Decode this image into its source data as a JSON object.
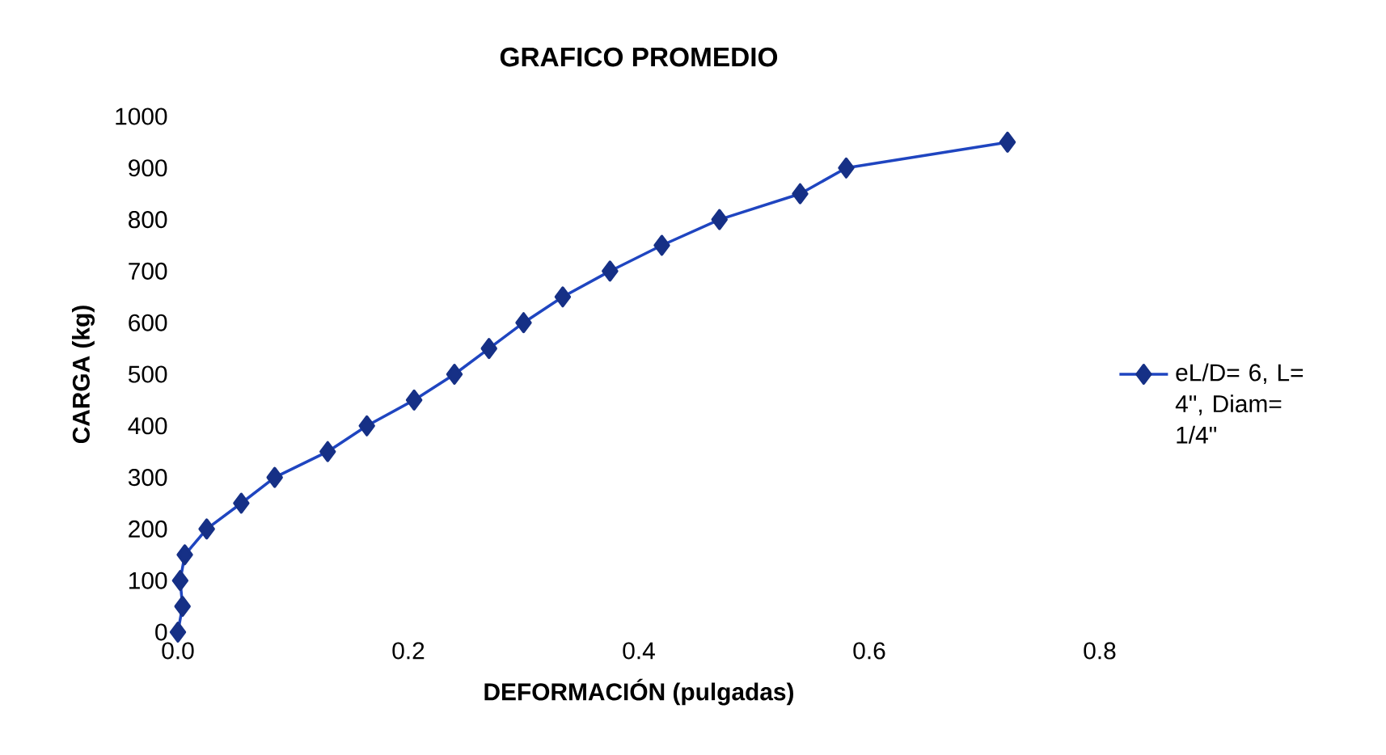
{
  "chart_data": {
    "type": "line",
    "title": "GRAFICO PROMEDIO",
    "xlabel": "DEFORMACIÓN (pulgadas)",
    "ylabel": "CARGA (kg)",
    "xlim": [
      0,
      0.8
    ],
    "xticks": [
      {
        "value": 0,
        "label": "0.0"
      },
      {
        "value": 0.2,
        "label": "0.2"
      },
      {
        "value": 0.4,
        "label": "0.4"
      },
      {
        "value": 0.6,
        "label": "0.6"
      },
      {
        "value": 0.8,
        "label": "0.8"
      }
    ],
    "ylim": [
      0,
      1000
    ],
    "yticks": [
      0,
      100,
      200,
      300,
      400,
      500,
      600,
      700,
      800,
      900,
      1000
    ],
    "grid": false,
    "legend": "right",
    "marker": "diamond",
    "line_style": "solid",
    "series": [
      {
        "name": "eL/D= 6, L= 4\", Diam= 1/4\"",
        "color": "#1f45c0",
        "x": [
          0,
          0.004,
          0.002,
          0.006,
          0.025,
          0.055,
          0.084,
          0.13,
          0.164,
          0.205,
          0.24,
          0.27,
          0.3,
          0.334,
          0.375,
          0.42,
          0.47,
          0.54,
          0.58,
          0.72
        ],
        "values": [
          0,
          50,
          100,
          150,
          200,
          250,
          300,
          350,
          400,
          450,
          500,
          550,
          600,
          650,
          700,
          750,
          800,
          850,
          900,
          950
        ]
      }
    ]
  }
}
